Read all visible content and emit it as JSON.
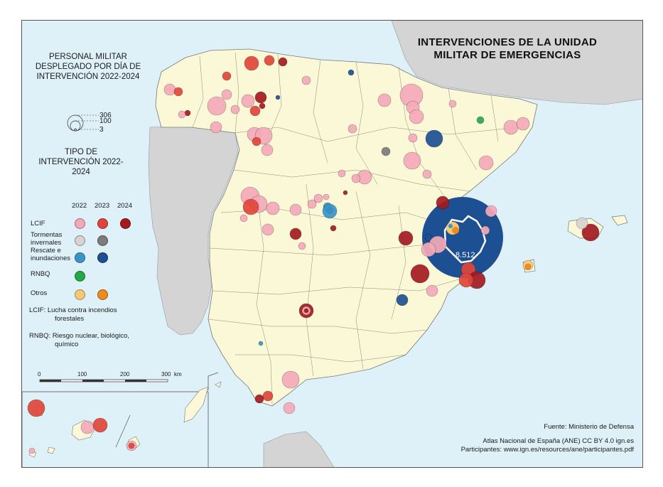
{
  "title": "INTERVENCIONES DE LA UNIDAD MILITAR DE EMERGENCIAS",
  "size_legend": {
    "title": "PERSONAL MILITAR DESPLEGADO POR DÍA DE INTERVENCIÓN 2022-2024",
    "values": [
      "306",
      "100",
      "3"
    ]
  },
  "type_legend": {
    "title": "TIPO DE INTERVENCIÓN 2022-2024",
    "years": [
      "2022",
      "2023",
      "2024"
    ],
    "rows": [
      {
        "label": "LCIF",
        "colors": [
          "#f4a9b8",
          "#e0453a",
          "#a31a1f"
        ]
      },
      {
        "label": "Tormentas invernales",
        "colors": [
          "#d9d3d3",
          "#7d7b7b",
          null
        ]
      },
      {
        "label": "Rescate e inundaciones",
        "colors": [
          "#3a94c8",
          "#1d4f93",
          null
        ]
      },
      {
        "label": "RNBQ",
        "colors": [
          "#25a84a",
          null,
          null
        ]
      },
      {
        "label": "Otros",
        "colors": [
          "#f7c873",
          "#ef8a1e",
          null
        ]
      }
    ]
  },
  "notes": {
    "lcif": "LCIF: Lucha contra incendios",
    "lcif2": "forestales",
    "rnbq": "RNBQ: Riesgo nuclear, biológico,",
    "rnbq2": "químico"
  },
  "scale": {
    "ticks": [
      "0",
      "100",
      "200",
      "300"
    ],
    "unit": "km"
  },
  "highlight_value": "8.512",
  "credits": {
    "source": "Fuente: Ministerio de Defensa",
    "atlas": "Atlas Nacional de España (ANE) CC BY 4.0 ign.es",
    "participants": "Participantes: www.ign.es/resources/ane/participantes.pdf"
  },
  "colors": {
    "sea": "#dff1f8",
    "spain": "#fbf8d8",
    "neighbor": "#d4d4d4",
    "lcif_2022": "#f4a9b8",
    "lcif_2023": "#e0453a",
    "lcif_2024": "#a31a1f",
    "storm_2022": "#d9d3d3",
    "storm_2023": "#7d7b7b",
    "rescue_2022": "#3a94c8",
    "rescue_2023": "#1d4f93",
    "rnbq_2022": "#25a84a",
    "otros_2022": "#f7c873",
    "otros_2023": "#ef8a1e"
  }
}
